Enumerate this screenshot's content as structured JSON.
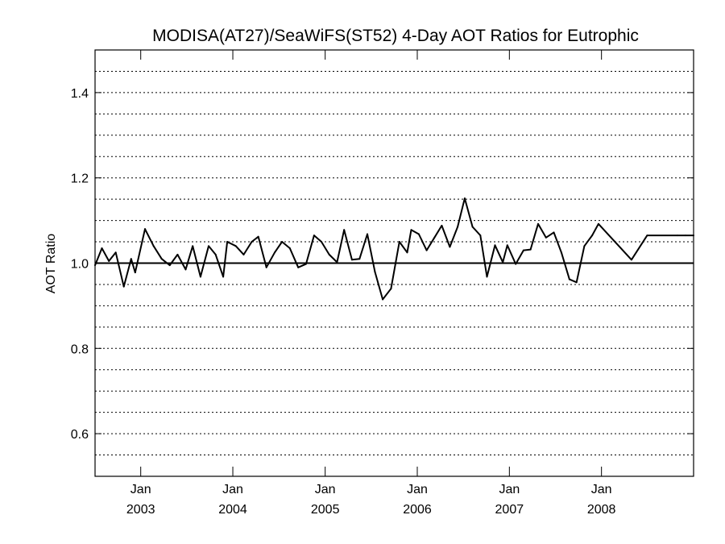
{
  "chart_data": {
    "type": "line",
    "title": "MODISA(AT27)/SeaWiFS(ST52) 4-Day AOT Ratios for Eutrophic",
    "ylabel": "AOT Ratio",
    "xlabel": "",
    "xlim": [
      "2002-07-04",
      "2008-12-31"
    ],
    "ylim": [
      0.5,
      1.5
    ],
    "yticks": [
      {
        "value": 0.6,
        "label": "0.6"
      },
      {
        "value": 0.8,
        "label": "0.8"
      },
      {
        "value": 1.0,
        "label": "1.0"
      },
      {
        "value": 1.2,
        "label": "1.2"
      },
      {
        "value": 1.4,
        "label": "1.4"
      }
    ],
    "xticks": [
      {
        "date": "2003-01-01",
        "month": "Jan",
        "year": "2003"
      },
      {
        "date": "2004-01-01",
        "month": "Jan",
        "year": "2004"
      },
      {
        "date": "2005-01-01",
        "month": "Jan",
        "year": "2005"
      },
      {
        "date": "2006-01-01",
        "month": "Jan",
        "year": "2006"
      },
      {
        "date": "2007-01-01",
        "month": "Jan",
        "year": "2007"
      },
      {
        "date": "2008-01-01",
        "month": "Jan",
        "year": "2008"
      }
    ],
    "grid": true,
    "reference_line": 1.0,
    "series": [
      {
        "color": "#000000",
        "x": [
          "2002-07-04",
          "2002-07-31",
          "2002-08-28",
          "2002-09-24",
          "2002-10-26",
          "2002-11-24",
          "2002-12-10",
          "2003-01-18",
          "2003-02-21",
          "2003-03-25",
          "2003-04-26",
          "2003-05-27",
          "2003-06-28",
          "2003-07-26",
          "2003-08-26",
          "2003-09-27",
          "2003-10-25",
          "2003-11-24",
          "2003-12-10",
          "2004-01-13",
          "2004-02-13",
          "2004-03-16",
          "2004-04-11",
          "2004-05-13",
          "2004-06-15",
          "2004-07-14",
          "2004-08-14",
          "2004-09-16",
          "2004-10-17",
          "2004-11-18",
          "2004-12-17",
          "2005-01-17",
          "2005-02-17",
          "2005-03-17",
          "2005-04-17",
          "2005-05-17",
          "2005-06-17",
          "2005-07-17",
          "2005-08-17",
          "2005-09-19",
          "2005-10-22",
          "2005-11-22",
          "2005-12-08",
          "2006-01-07",
          "2006-02-07",
          "2006-03-10",
          "2006-04-08",
          "2006-05-10",
          "2006-06-10",
          "2006-07-08",
          "2006-08-08",
          "2006-09-08",
          "2006-10-04",
          "2006-11-05",
          "2006-12-06",
          "2006-12-24",
          "2007-01-26",
          "2007-02-26",
          "2007-03-26",
          "2007-04-25",
          "2007-05-26",
          "2007-06-26",
          "2007-07-26",
          "2007-08-27",
          "2007-09-24",
          "2007-10-25",
          "2007-11-25",
          "2007-12-20",
          "2008-04-29",
          "2008-06-30",
          "2008-10-28",
          "2008-11-29",
          "2008-12-31"
        ],
        "y": [
          0.995,
          1.035,
          1.005,
          1.025,
          0.945,
          1.01,
          0.978,
          1.08,
          1.04,
          1.01,
          0.995,
          1.02,
          0.985,
          1.04,
          0.968,
          1.04,
          1.02,
          0.968,
          1.05,
          1.04,
          1.02,
          1.05,
          1.062,
          0.99,
          1.025,
          1.05,
          1.035,
          0.99,
          0.998,
          1.065,
          1.05,
          1.02,
          1.002,
          1.078,
          1.008,
          1.01,
          1.068,
          0.98,
          0.915,
          0.94,
          1.05,
          1.025,
          1.078,
          1.068,
          1.03,
          1.06,
          1.088,
          1.038,
          1.085,
          1.152,
          1.085,
          1.065,
          0.968,
          1.042,
          1.002,
          1.042,
          0.998,
          1.03,
          1.032,
          1.092,
          1.06,
          1.072,
          1.025,
          0.962,
          0.955,
          1.04,
          1.065,
          1.092,
          1.008,
          1.065,
          1.065,
          1.065,
          1.065
        ]
      }
    ]
  }
}
